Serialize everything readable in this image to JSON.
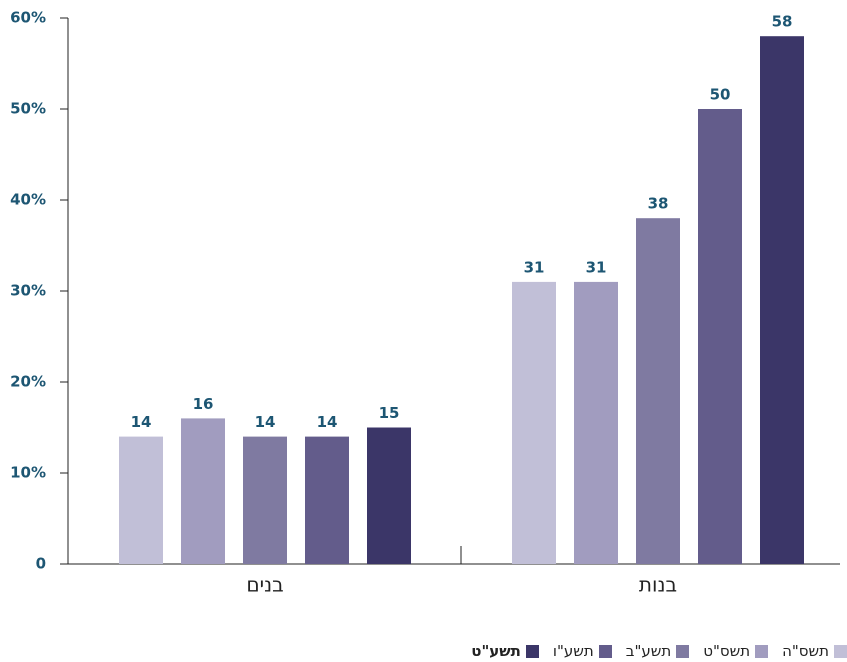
{
  "chart_data": {
    "type": "bar",
    "categories": [
      "בנים",
      "בנות"
    ],
    "series": [
      {
        "name": "תשס\"ה",
        "color": "#c1bfd7",
        "values": [
          14,
          31
        ]
      },
      {
        "name": "תשס\"ט",
        "color": "#a19cbf",
        "values": [
          16,
          31
        ]
      },
      {
        "name": "תשע\"ב",
        "color": "#7f7aa1",
        "values": [
          14,
          38
        ]
      },
      {
        "name": "תשע\"ו",
        "color": "#635c8b",
        "values": [
          14,
          50
        ]
      },
      {
        "name": "תשע\"ט",
        "color": "#3b3668",
        "values": [
          15,
          58
        ]
      }
    ],
    "ylim": [
      0,
      60
    ],
    "yticks": [
      0,
      {
        "value": 10,
        "label": "10%"
      },
      {
        "value": 20,
        "label": "20%"
      },
      {
        "value": 30,
        "label": "30%"
      },
      {
        "value": 40,
        "label": "40%"
      },
      {
        "value": 50,
        "label": "50%"
      },
      {
        "value": 60,
        "label": "60%"
      }
    ],
    "value_label_color": "#1d5673"
  }
}
